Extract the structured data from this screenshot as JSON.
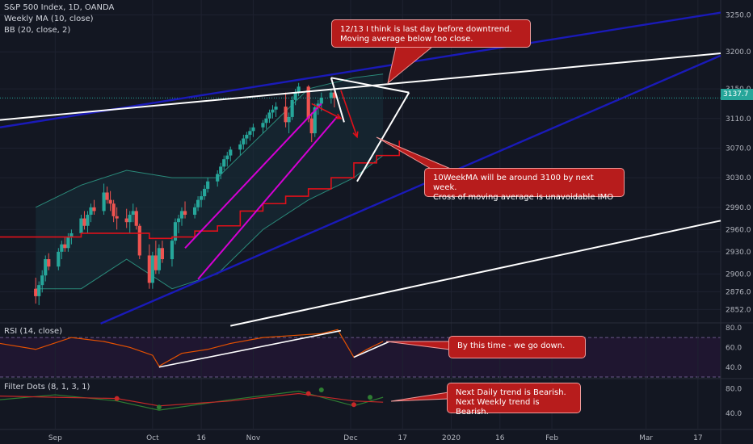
{
  "header": {
    "symbol_line": "S&P 500 Index, 1D, OANDA",
    "ma_line": "Weekly MA (10, close)",
    "bb_line": "BB (20, close, 2)"
  },
  "price_tag": "3137.7",
  "annotations": [
    {
      "id": "callout-top",
      "text": "12/13 I think is last day before downtrend.\nMoving average below too close."
    },
    {
      "id": "callout-mid",
      "text": "10WeekMA will be around 3100 by next week.\nCross of moving average is unavoidable IMO"
    },
    {
      "id": "callout-rsi",
      "text": "By this time - we go down."
    },
    {
      "id": "callout-dots",
      "text": "Next Daily trend is Bearish.\nNext Weekly trend is\nBearish."
    }
  ],
  "colors": {
    "background": "#131722",
    "up": "#26a69a",
    "down": "#ef5350",
    "trend_blue": "#1a1ab8",
    "trend_white": "#ffffff",
    "channel": "#d400d4",
    "ma": "#e0101a",
    "bb": "#2a8a7a",
    "rsi": "#e65100",
    "callout": "#b71c1c"
  },
  "chart_data": [
    {
      "type": "candlestick",
      "title": "S&P 500 Index, 1D, OANDA",
      "x_ticks": [
        "Sep",
        "Oct",
        "16",
        "Nov",
        "Dec",
        "17",
        "2020",
        "16",
        "Feb",
        "Mar",
        "17"
      ],
      "y_ticks": [
        2852.0,
        2876.0,
        2900.0,
        2930.0,
        2960.0,
        2990.0,
        3030.0,
        3070.0,
        3110.0,
        3150.0,
        3200.0,
        3250.0
      ],
      "ylim": [
        2835,
        3270
      ],
      "last_price": 3137.7,
      "ohlc_start": "2019-08-26",
      "ohlc": [
        [
          2880,
          2895,
          2860,
          2870
        ],
        [
          2870,
          2890,
          2858,
          2885
        ],
        [
          2885,
          2905,
          2875,
          2898
        ],
        [
          2898,
          2925,
          2890,
          2920
        ],
        [
          2920,
          2928,
          2905,
          2910
        ],
        [
          2910,
          2935,
          2905,
          2930
        ],
        [
          2930,
          2945,
          2920,
          2940
        ],
        [
          2940,
          2950,
          2930,
          2935
        ],
        [
          2935,
          2955,
          2930,
          2950
        ],
        [
          2950,
          2960,
          2940,
          2955
        ],
        [
          2955,
          2980,
          2950,
          2975
        ],
        [
          2975,
          2985,
          2960,
          2965
        ],
        [
          2965,
          2985,
          2955,
          2980
        ],
        [
          2980,
          2995,
          2970,
          2990
        ],
        [
          2990,
          3000,
          2980,
          2985
        ],
        [
          2985,
          3022,
          2980,
          3010
        ],
        [
          3010,
          3018,
          2995,
          3000
        ],
        [
          3000,
          3012,
          2985,
          2995
        ],
        [
          2995,
          3000,
          2970,
          2978
        ],
        [
          2978,
          2990,
          2960,
          2975
        ],
        [
          2975,
          2988,
          2962,
          2970
        ],
        [
          2970,
          2985,
          2955,
          2980
        ],
        [
          2980,
          2995,
          2970,
          2985
        ],
        [
          2985,
          2990,
          2960,
          2965
        ],
        [
          2965,
          2968,
          2920,
          2925
        ],
        [
          2925,
          2940,
          2880,
          2888
        ],
        [
          2888,
          2930,
          2880,
          2925
        ],
        [
          2925,
          2945,
          2900,
          2905
        ],
        [
          2905,
          2940,
          2900,
          2935
        ],
        [
          2935,
          2945,
          2915,
          2920
        ],
        [
          2920,
          2950,
          2910,
          2945
        ],
        [
          2945,
          2975,
          2940,
          2970
        ],
        [
          2970,
          2980,
          2955,
          2975
        ],
        [
          2975,
          2990,
          2965,
          2985
        ],
        [
          2985,
          2998,
          2975,
          2980
        ],
        [
          2980,
          2995,
          2975,
          2990
        ],
        [
          2990,
          3005,
          2985,
          3000
        ],
        [
          3000,
          3012,
          2990,
          3005
        ],
        [
          3005,
          3020,
          3000,
          3015
        ],
        [
          3015,
          3030,
          3010,
          3025
        ],
        [
          3025,
          3040,
          3018,
          3035
        ],
        [
          3035,
          3050,
          3028,
          3045
        ],
        [
          3045,
          3060,
          3040,
          3055
        ],
        [
          3055,
          3065,
          3045,
          3060
        ],
        [
          3060,
          3072,
          3052,
          3068
        ],
        [
          3068,
          3080,
          3060,
          3075
        ],
        [
          3075,
          3088,
          3068,
          3083
        ],
        [
          3083,
          3092,
          3075,
          3088
        ],
        [
          3088,
          3098,
          3080,
          3093
        ],
        [
          3093,
          3103,
          3085,
          3098
        ],
        [
          3098,
          3108,
          3090,
          3104
        ],
        [
          3104,
          3115,
          3096,
          3110
        ],
        [
          3110,
          3122,
          3104,
          3118
        ],
        [
          3118,
          3128,
          3110,
          3122
        ],
        [
          3122,
          3132,
          3112,
          3126
        ],
        [
          3126,
          3145,
          3098,
          3105
        ],
        [
          3105,
          3118,
          3090,
          3112
        ],
        [
          3112,
          3140,
          3108,
          3135
        ],
        [
          3135,
          3150,
          3128,
          3145
        ],
        [
          3145,
          3158,
          3140,
          3153
        ],
        [
          3153,
          3155,
          3105,
          3110
        ],
        [
          3110,
          3118,
          3078,
          3090
        ],
        [
          3090,
          3130,
          3085,
          3125
        ],
        [
          3125,
          3135,
          3115,
          3130
        ],
        [
          3130,
          3145,
          3120,
          3138
        ],
        [
          3138,
          3150,
          3130,
          3145
        ],
        [
          3145,
          3152,
          3125,
          3137.7
        ]
      ],
      "trendlines": [
        {
          "color": "#1a1ab8",
          "x": [
            "2019-08-15",
            "2020-03-24"
          ],
          "y": [
            3098,
            3253
          ]
        },
        {
          "color": "#1a1ab8",
          "x": [
            "2019-09-15",
            "2020-03-24"
          ],
          "y": [
            2833,
            3195
          ]
        },
        {
          "color": "#ffffff",
          "x": [
            "2019-08-15",
            "2020-03-24"
          ],
          "y": [
            3108,
            3198
          ]
        },
        {
          "color": "#ffffff",
          "x": [
            "2019-10-25",
            "2020-03-24"
          ],
          "y": [
            2830,
            2972
          ]
        },
        {
          "color": "#d400d4",
          "x": [
            "2019-10-11",
            "2019-11-22"
          ],
          "y": [
            2935,
            3130
          ]
        },
        {
          "color": "#d400d4",
          "x": [
            "2019-10-15",
            "2019-11-27"
          ],
          "y": [
            2893,
            3113
          ]
        },
        {
          "color": "#ffffff",
          "x": [
            "2019-11-25",
            "2019-12-19"
          ],
          "y": [
            3165,
            3145
          ]
        },
        {
          "color": "#ffffff",
          "x": [
            "2019-11-25",
            "2019-11-29"
          ],
          "y": [
            3165,
            3105
          ]
        },
        {
          "color": "#ffffff",
          "x": [
            "2019-12-03",
            "2019-12-19"
          ],
          "y": [
            3025,
            3145
          ]
        }
      ],
      "arrows": [
        {
          "color": "#e0101a",
          "x": [
            "2019-11-19",
            "2019-11-28"
          ],
          "y": [
            3130,
            3110
          ]
        },
        {
          "color": "#e0101a",
          "x": [
            "2019-11-28",
            "2019-12-03"
          ],
          "y": [
            3148,
            3085
          ]
        }
      ],
      "weekly_ma": {
        "x": [
          "2019-08-15",
          "2019-08-26",
          "2019-09-02",
          "2019-09-09",
          "2019-09-16",
          "2019-09-23",
          "2019-09-30",
          "2019-10-07",
          "2019-10-14",
          "2019-10-21",
          "2019-10-28",
          "2019-11-04",
          "2019-11-11",
          "2019-11-18",
          "2019-11-25",
          "2019-12-02",
          "2019-12-09",
          "2019-12-16"
        ],
        "y": [
          2950,
          2950,
          2950,
          2955,
          2955,
          2955,
          2948,
          2950,
          2958,
          2965,
          2985,
          2995,
          3005,
          3015,
          3030,
          3050,
          3060,
          3080
        ]
      },
      "bollinger": {
        "x": [
          "2019-08-26",
          "2019-09-09",
          "2019-09-23",
          "2019-10-07",
          "2019-10-21",
          "2019-11-04",
          "2019-11-18",
          "2019-12-02",
          "2019-12-11"
        ],
        "upper": [
          2990,
          3020,
          3040,
          3030,
          3030,
          3090,
          3150,
          3165,
          3170
        ],
        "lower": [
          2880,
          2880,
          2920,
          2880,
          2900,
          2960,
          3000,
          3030,
          3060
        ]
      }
    },
    {
      "type": "line",
      "title": "RSI (14, close)",
      "y_ticks": [
        40.0,
        60.0,
        80.0
      ],
      "ylim": [
        30,
        84
      ],
      "bands": [
        70,
        30
      ],
      "series": [
        {
          "x": [
            "2019-08-15",
            "2019-08-26",
            "2019-09-06",
            "2019-09-16",
            "2019-09-24",
            "2019-10-01",
            "2019-10-03",
            "2019-10-10",
            "2019-10-18",
            "2019-10-25",
            "2019-11-04",
            "2019-11-13",
            "2019-11-22",
            "2019-11-27",
            "2019-12-02",
            "2019-12-06",
            "2019-12-11"
          ],
          "y": [
            64,
            58,
            70,
            66,
            60,
            52,
            41,
            54,
            58,
            64,
            70,
            72,
            74,
            78,
            50,
            58,
            66
          ]
        }
      ],
      "trendlines": [
        {
          "x": [
            "2019-10-03",
            "2019-11-28"
          ],
          "y": [
            40,
            77
          ]
        },
        {
          "x": [
            "2019-12-02",
            "2019-12-13"
          ],
          "y": [
            50,
            66
          ]
        }
      ]
    },
    {
      "type": "line",
      "title": "Filter Dots (8, 1, 3, 1)",
      "y_ticks": [
        40.0,
        80.0
      ],
      "ylim": [
        15,
        95
      ],
      "series": [
        {
          "x": [
            "2019-08-15",
            "2019-09-01",
            "2019-09-20",
            "2019-10-03",
            "2019-10-25",
            "2019-11-15",
            "2019-12-02",
            "2019-12-11"
          ],
          "y": [
            62,
            70,
            60,
            45,
            62,
            76,
            52,
            66
          ]
        },
        {
          "x": [
            "2019-08-15",
            "2019-09-01",
            "2019-09-20",
            "2019-10-03",
            "2019-10-25",
            "2019-11-15",
            "2019-12-02",
            "2019-12-11"
          ],
          "y": [
            68,
            66,
            64,
            52,
            60,
            72,
            60,
            58
          ]
        }
      ]
    }
  ]
}
